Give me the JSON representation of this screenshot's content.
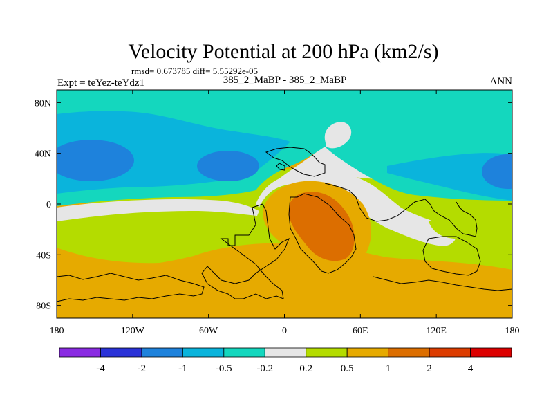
{
  "chart_data": {
    "type": "heatmap",
    "title": "Velocity Potential at 200 hPa (km2/s)",
    "subtitle_left": "rmsd= 0.673785 diff= 5.55292e-05",
    "experiment_label": "Expt = teYez-teYdz1",
    "center_label": "385_2_MaBP - 385_2_MaBP",
    "season_label": "ANN",
    "x_ticks": [
      {
        "value": -180,
        "label": "180"
      },
      {
        "value": -120,
        "label": "120W"
      },
      {
        "value": -60,
        "label": "60W"
      },
      {
        "value": 0,
        "label": "0"
      },
      {
        "value": 60,
        "label": "60E"
      },
      {
        "value": 120,
        "label": "120E"
      },
      {
        "value": 180,
        "label": "180"
      }
    ],
    "y_ticks": [
      {
        "value": 80,
        "label": "80N"
      },
      {
        "value": 40,
        "label": "40N"
      },
      {
        "value": 0,
        "label": "0"
      },
      {
        "value": -40,
        "label": "40S"
      },
      {
        "value": -80,
        "label": "80S"
      }
    ],
    "xlim": [
      -180,
      180
    ],
    "ylim": [
      -90,
      90
    ],
    "colorbar": {
      "levels": [
        "-4",
        "-2",
        "-1",
        "-0.5",
        "-0.2",
        "0.2",
        "0.5",
        "1",
        "2",
        "4"
      ],
      "colors": [
        "#8a2be2",
        "#2a32d8",
        "#1e82dc",
        "#0ab4dc",
        "#14d7be",
        "#e6e6e6",
        "#b4dc00",
        "#e6aa00",
        "#dc6e00",
        "#dc3c00",
        "#dc0000"
      ]
    },
    "field_description_bands": {
      "north_polar_band_level": "-0.5 to -0.2",
      "tropics_level": "0.2 to 0.5",
      "southern_band_level": "0.5 to 1",
      "max_center_lon": 30,
      "max_center_lat": -20,
      "max_level": "1 to 2"
    }
  }
}
